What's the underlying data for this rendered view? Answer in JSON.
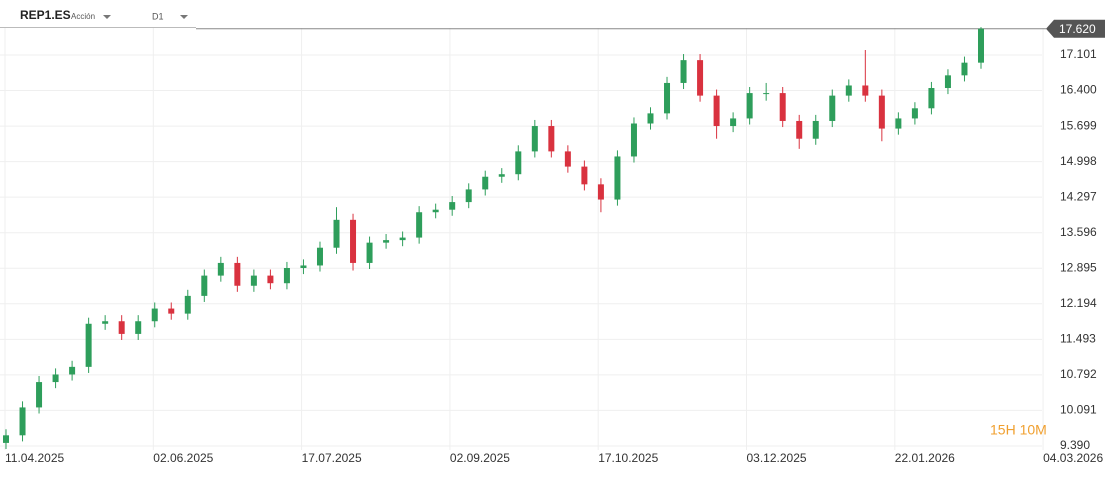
{
  "toolbar": {
    "symbol": "REP1.ES",
    "asset_type": "Acción",
    "timeframe": "D1"
  },
  "chart_data": {
    "type": "candlestick",
    "x_labels": [
      "11.04.2025",
      "02.06.2025",
      "17.07.2025",
      "02.09.2025",
      "17.10.2025",
      "03.12.2025",
      "22.01.2026",
      "04.03.2026"
    ],
    "open": [
      9.45,
      9.6,
      10.15,
      10.65,
      10.8,
      10.95,
      11.8,
      11.85,
      11.6,
      11.85,
      12.1,
      12.0,
      12.35,
      12.75,
      13.0,
      12.55,
      12.75,
      12.6,
      12.9,
      12.95,
      13.3,
      13.85,
      13.0,
      13.4,
      13.45,
      13.5,
      14.0,
      14.05,
      14.2,
      14.45,
      14.7,
      14.75,
      15.2,
      15.7,
      15.2,
      14.9,
      14.55,
      14.25,
      15.1,
      15.75,
      15.95,
      16.55,
      17.0,
      16.3,
      15.7,
      15.85,
      16.35,
      16.35,
      15.8,
      15.45,
      15.8,
      16.3,
      16.5,
      16.3,
      15.65,
      15.85,
      16.05,
      16.45,
      16.7,
      16.95
    ],
    "high": [
      9.72,
      10.27,
      10.77,
      10.92,
      11.07,
      11.92,
      11.97,
      11.97,
      11.97,
      12.22,
      12.22,
      12.47,
      12.87,
      13.12,
      13.12,
      12.87,
      12.87,
      13.02,
      13.07,
      13.42,
      14.1,
      13.97,
      13.52,
      13.57,
      13.62,
      14.12,
      14.17,
      14.32,
      14.57,
      14.82,
      14.87,
      15.32,
      15.82,
      15.82,
      15.32,
      15.02,
      14.67,
      15.22,
      15.87,
      16.07,
      16.67,
      17.12,
      17.12,
      16.42,
      15.97,
      16.47,
      16.55,
      16.47,
      15.92,
      15.92,
      16.42,
      16.62,
      17.2,
      16.42,
      15.97,
      16.17,
      16.57,
      16.82,
      17.07,
      17.65
    ],
    "low": [
      9.33,
      9.48,
      10.03,
      10.53,
      10.68,
      10.83,
      11.68,
      11.48,
      11.48,
      11.73,
      11.88,
      11.88,
      12.23,
      12.63,
      12.43,
      12.43,
      12.48,
      12.48,
      12.78,
      12.83,
      13.18,
      12.85,
      12.88,
      13.28,
      13.33,
      13.38,
      13.88,
      13.93,
      14.08,
      14.33,
      14.58,
      14.63,
      15.08,
      15.08,
      14.78,
      14.43,
      14.0,
      14.13,
      14.98,
      15.63,
      15.83,
      16.43,
      16.18,
      15.45,
      15.58,
      15.73,
      16.2,
      15.68,
      15.25,
      15.33,
      15.68,
      16.18,
      16.18,
      15.4,
      15.53,
      15.73,
      15.93,
      16.33,
      16.58,
      16.83
    ],
    "close": [
      9.6,
      10.15,
      10.65,
      10.8,
      10.95,
      11.8,
      11.85,
      11.6,
      11.85,
      12.1,
      12.0,
      12.35,
      12.75,
      13.0,
      12.55,
      12.75,
      12.6,
      12.9,
      12.95,
      13.3,
      13.85,
      13.0,
      13.4,
      13.45,
      13.5,
      14.0,
      14.05,
      14.2,
      14.45,
      14.7,
      14.75,
      15.2,
      15.7,
      15.2,
      14.9,
      14.55,
      14.25,
      15.1,
      15.75,
      15.95,
      16.55,
      17.0,
      16.3,
      15.7,
      15.85,
      16.35,
      16.35,
      15.8,
      15.45,
      15.8,
      16.3,
      16.5,
      16.3,
      15.65,
      15.85,
      16.05,
      16.45,
      16.7,
      16.95,
      17.62
    ],
    "up_color": "#2e9e5b",
    "down_color": "#d9323f",
    "ylim": [
      9.113,
      18.186
    ],
    "yticks": [
      17.101,
      {
        "value": 16.4,
        "label": "16.400"
      },
      15.699,
      14.998,
      14.297,
      13.596,
      12.895,
      12.194,
      11.493,
      10.792,
      10.091,
      {
        "value": 9.39,
        "label": "9.390"
      }
    ],
    "grid": true,
    "last_price": {
      "value": 17.62,
      "label": "17.620"
    },
    "countdown": "15H 10M"
  }
}
